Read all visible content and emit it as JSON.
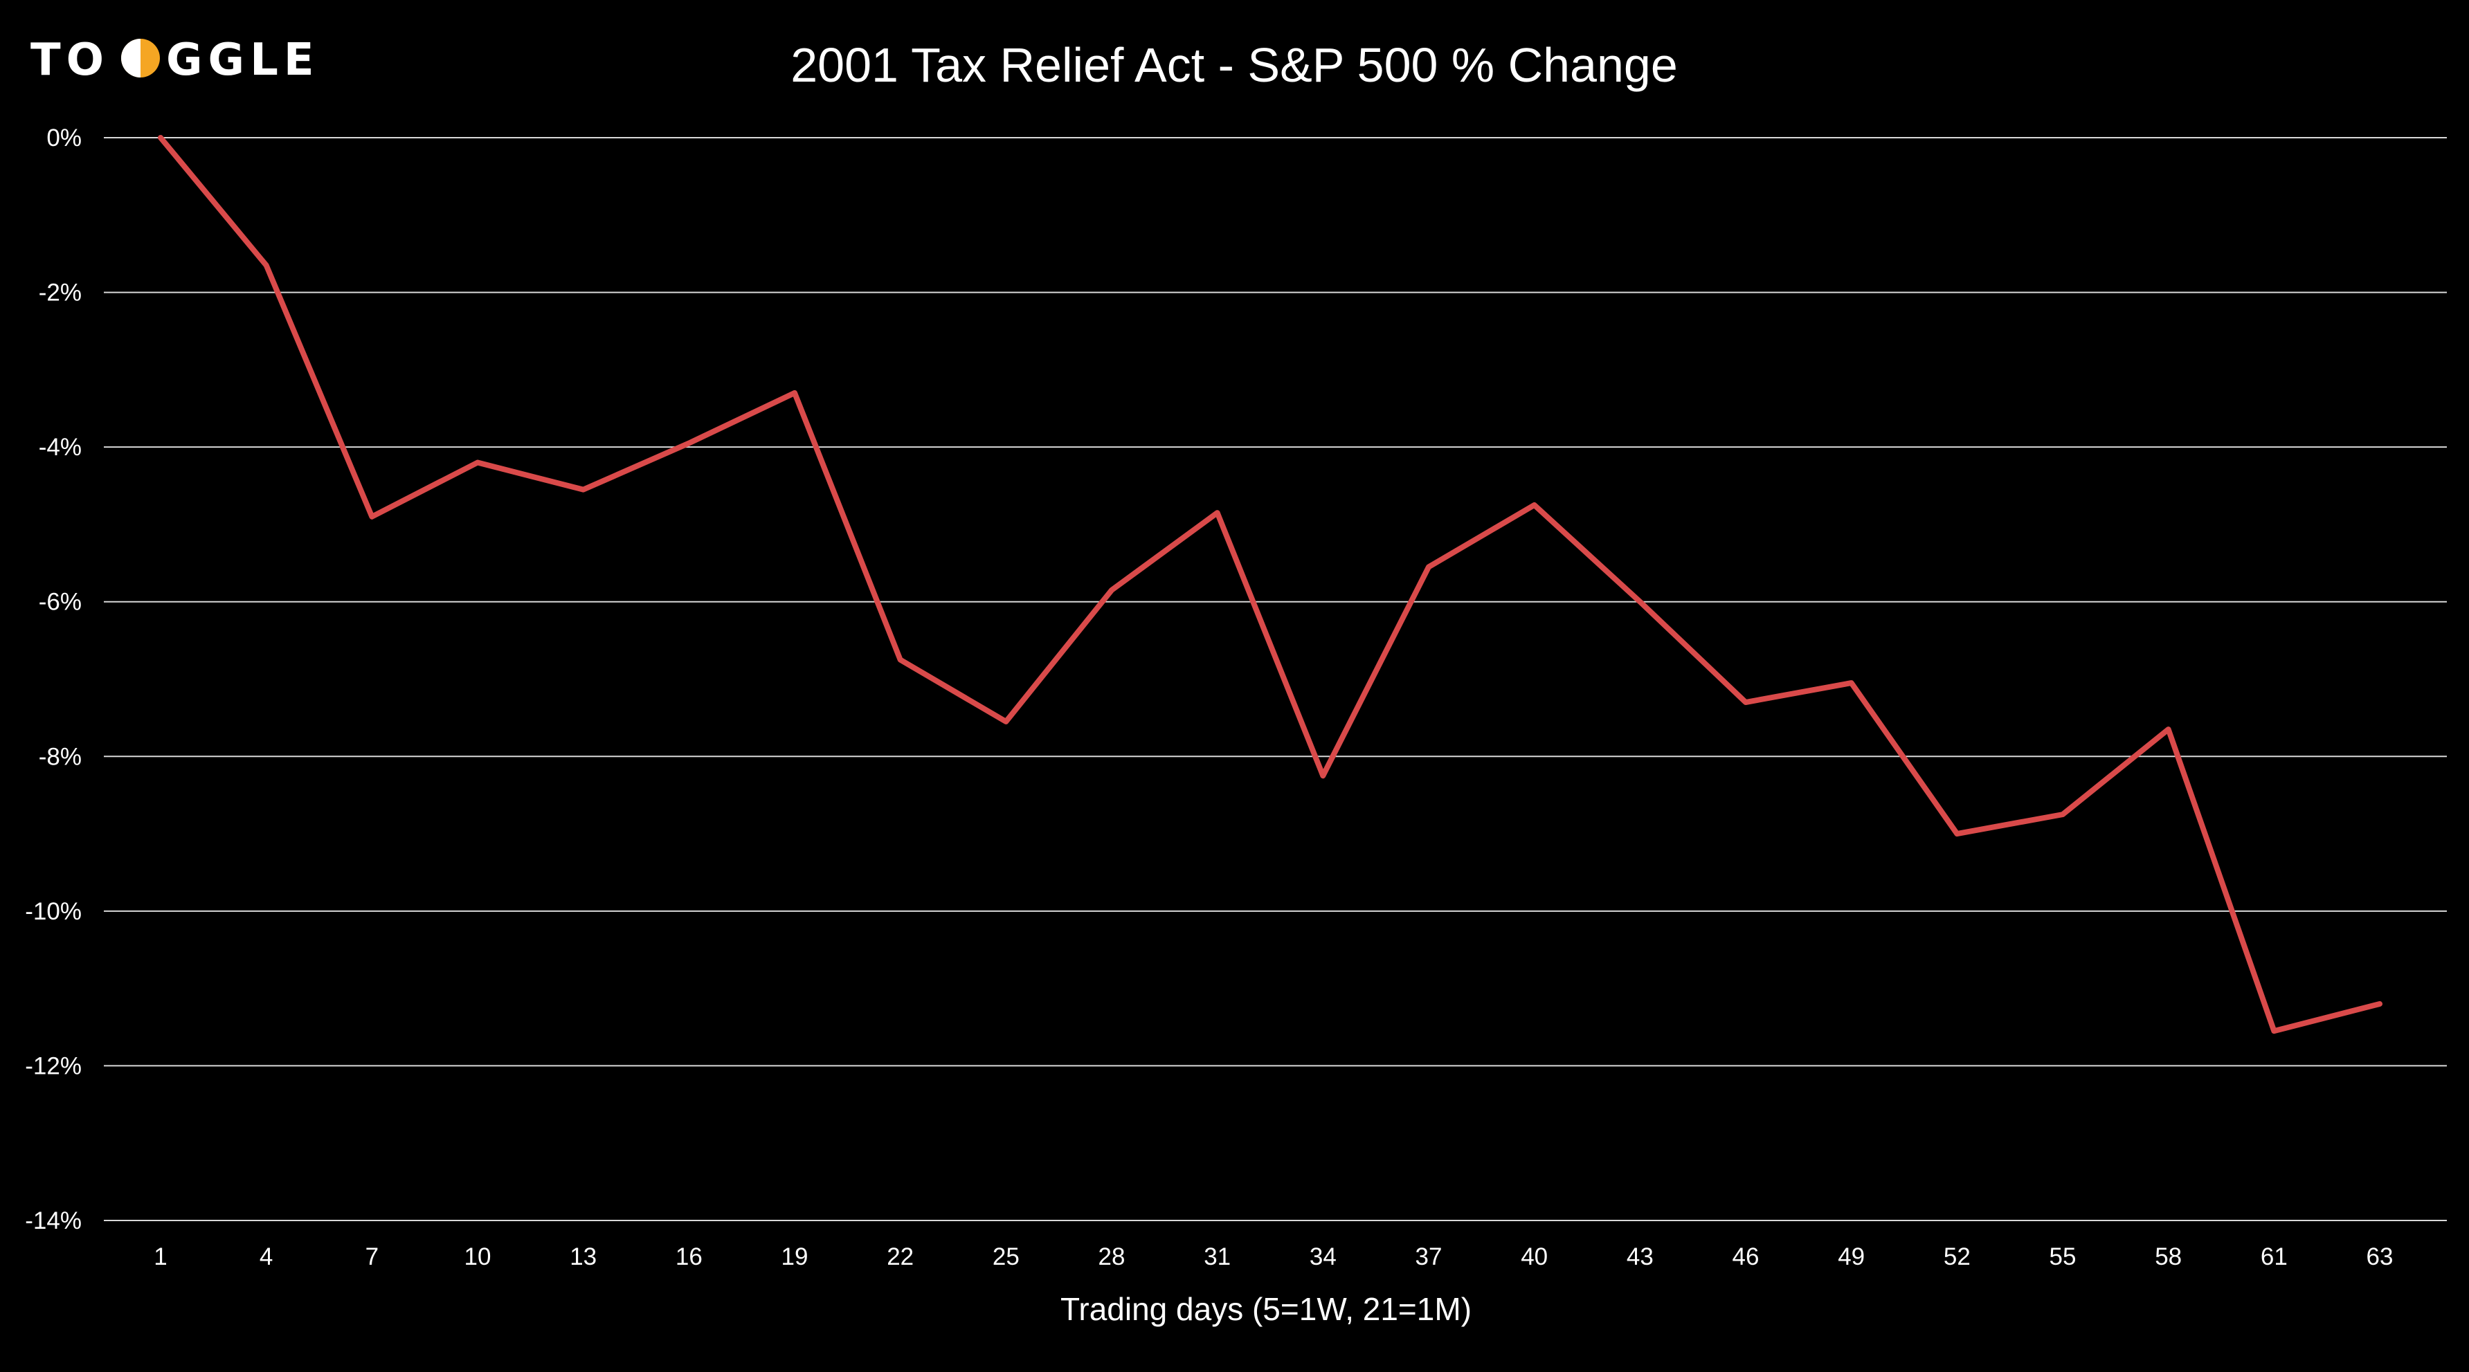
{
  "logo": {
    "text_left": "TO",
    "text_right": "GGLE",
    "accent_color": "#f5a623",
    "icon": "toggle-o-icon"
  },
  "chart_data": {
    "type": "line",
    "title": "2001 Tax Relief Act - S&P 500 % Change",
    "xlabel": "Trading days (5=1W, 21=1M)",
    "ylabel": "",
    "categories": [
      "1",
      "4",
      "7",
      "10",
      "13",
      "16",
      "19",
      "22",
      "25",
      "28",
      "31",
      "34",
      "37",
      "40",
      "43",
      "46",
      "49",
      "52",
      "55",
      "58",
      "61",
      "63"
    ],
    "ylim": [
      -14,
      0
    ],
    "yticks": [
      0,
      -2,
      -4,
      -6,
      -8,
      -10,
      -12,
      -14
    ],
    "ytick_labels": [
      "0%",
      "-2%",
      "-4%",
      "-6%",
      "-8%",
      "-10%",
      "-12%",
      "-14%"
    ],
    "grid": true,
    "legend": "none",
    "series": [
      {
        "color": "#d94a4a",
        "values": [
          0.0,
          -1.65,
          -4.9,
          -4.2,
          -4.55,
          -3.95,
          -3.3,
          -6.75,
          -7.55,
          -5.85,
          -4.85,
          -8.25,
          -5.55,
          -4.75,
          -6.0,
          -7.3,
          -7.05,
          -9.0,
          -8.75,
          -7.65,
          -11.55,
          -11.2
        ]
      }
    ]
  }
}
